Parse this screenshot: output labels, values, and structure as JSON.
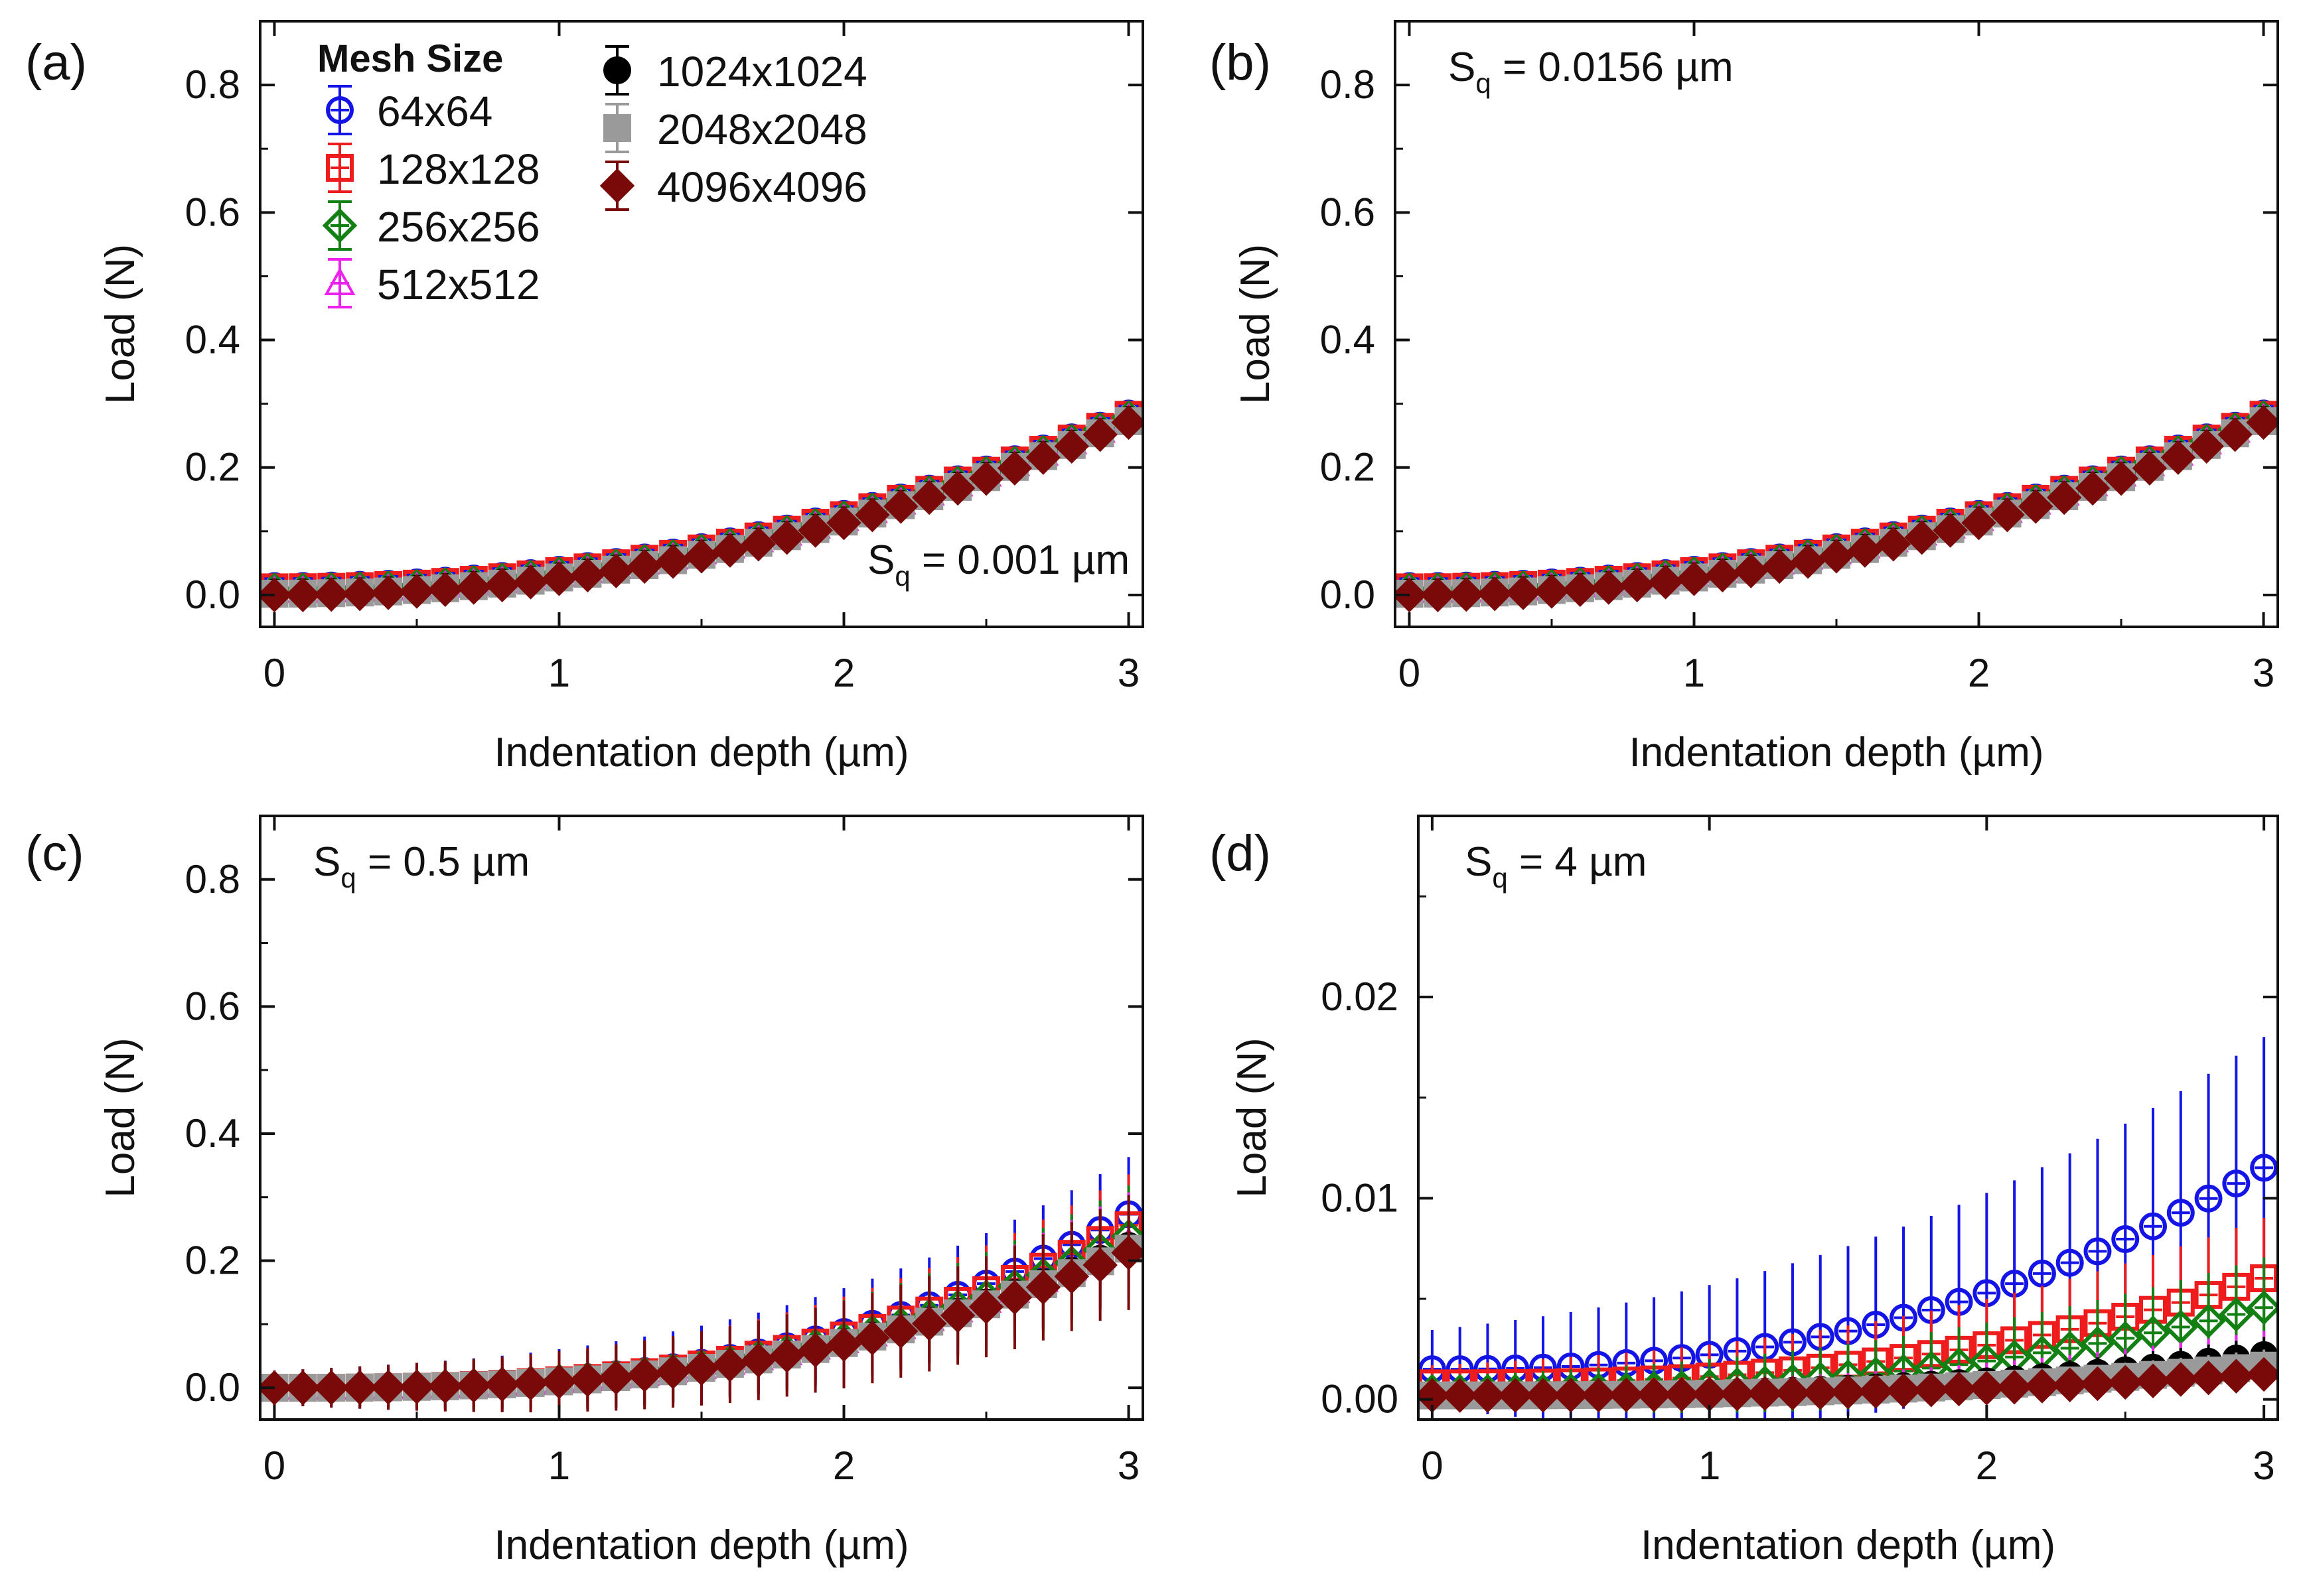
{
  "chart_data": [
    {
      "panel_label": "(a)",
      "type": "scatter",
      "annotation": {
        "prefix": "S",
        "sub": "q",
        "text": " = 0.001 µm"
      },
      "annotation_pos": "bottom-right",
      "xlabel": "Indentation depth (µm)",
      "ylabel": "Load (N)",
      "xlim": [
        -0.05,
        3.05
      ],
      "ylim": [
        -0.05,
        0.9
      ],
      "xticks": [
        0,
        1,
        2,
        3
      ],
      "xtick_labels": [
        "0",
        "1",
        "2",
        "3"
      ],
      "yticks": [
        0.0,
        0.2,
        0.4,
        0.6,
        0.8
      ],
      "ytick_labels": [
        "0.0",
        "0.2",
        "0.4",
        "0.6",
        "0.8"
      ],
      "x": [
        0,
        0.1,
        0.2,
        0.3,
        0.4,
        0.5,
        0.6,
        0.7,
        0.8,
        0.9,
        1.0,
        1.1,
        1.2,
        1.3,
        1.4,
        1.5,
        1.6,
        1.7,
        1.8,
        1.9,
        2.0,
        2.1,
        2.2,
        2.3,
        2.4,
        2.5,
        2.6,
        2.7,
        2.8,
        2.9,
        3.0
      ],
      "series": [
        {
          "name": "64x64",
          "a": 0.0255,
          "c": 0.014,
          "p": 2.15,
          "err": 0.01
        },
        {
          "name": "128x128",
          "a": 0.0255,
          "c": 0.012,
          "p": 2.15,
          "err": 0.01
        },
        {
          "name": "256x256",
          "a": 0.0255,
          "c": 0.008,
          "p": 2.15,
          "err": 0.01
        },
        {
          "name": "512x512",
          "a": 0.0255,
          "c": 0.006,
          "p": 2.15,
          "err": 0.01
        },
        {
          "name": "1024x1024",
          "a": 0.0255,
          "c": 0.004,
          "p": 2.15,
          "err": 0.01
        },
        {
          "name": "2048x2048",
          "a": 0.0255,
          "c": 0.002,
          "p": 2.15,
          "err": 0.01
        },
        {
          "name": "4096x4096",
          "a": 0.0255,
          "c": 0.0,
          "p": 2.15,
          "err": 0.01
        }
      ]
    },
    {
      "panel_label": "(b)",
      "type": "scatter",
      "annotation": {
        "prefix": "S",
        "sub": "q",
        "text": " = 0.0156 µm"
      },
      "annotation_pos": "top-left",
      "xlabel": "Indentation depth (µm)",
      "ylabel": "Load (N)",
      "xlim": [
        -0.05,
        3.05
      ],
      "ylim": [
        -0.05,
        0.9
      ],
      "xticks": [
        0,
        1,
        2,
        3
      ],
      "xtick_labels": [
        "0",
        "1",
        "2",
        "3"
      ],
      "yticks": [
        0.0,
        0.2,
        0.4,
        0.6,
        0.8
      ],
      "ytick_labels": [
        "0.0",
        "0.2",
        "0.4",
        "0.6",
        "0.8"
      ],
      "x": [
        0,
        0.1,
        0.2,
        0.3,
        0.4,
        0.5,
        0.6,
        0.7,
        0.8,
        0.9,
        1.0,
        1.1,
        1.2,
        1.3,
        1.4,
        1.5,
        1.6,
        1.7,
        1.8,
        1.9,
        2.0,
        2.1,
        2.2,
        2.3,
        2.4,
        2.5,
        2.6,
        2.7,
        2.8,
        2.9,
        3.0
      ],
      "series": [
        {
          "name": "64x64",
          "a": 0.0255,
          "c": 0.014,
          "p": 2.15,
          "err": 0.01
        },
        {
          "name": "128x128",
          "a": 0.0255,
          "c": 0.012,
          "p": 2.15,
          "err": 0.01
        },
        {
          "name": "256x256",
          "a": 0.0255,
          "c": 0.008,
          "p": 2.15,
          "err": 0.01
        },
        {
          "name": "512x512",
          "a": 0.0255,
          "c": 0.006,
          "p": 2.15,
          "err": 0.01
        },
        {
          "name": "1024x1024",
          "a": 0.0255,
          "c": 0.004,
          "p": 2.15,
          "err": 0.01
        },
        {
          "name": "2048x2048",
          "a": 0.0255,
          "c": 0.002,
          "p": 2.15,
          "err": 0.01
        },
        {
          "name": "4096x4096",
          "a": 0.0255,
          "c": 0.0,
          "p": 2.15,
          "err": 0.01
        }
      ]
    },
    {
      "panel_label": "(c)",
      "type": "scatter",
      "annotation": {
        "prefix": "S",
        "sub": "q",
        "text": " = 0.5 µm"
      },
      "annotation_pos": "top-left",
      "xlabel": "Indentation depth (µm)",
      "ylabel": "Load (N)",
      "xlim": [
        -0.05,
        3.05
      ],
      "ylim": [
        -0.05,
        0.9
      ],
      "xticks": [
        0,
        1,
        2,
        3
      ],
      "xtick_labels": [
        "0",
        "1",
        "2",
        "3"
      ],
      "yticks": [
        0.0,
        0.2,
        0.4,
        0.6,
        0.8
      ],
      "ytick_labels": [
        "0.0",
        "0.2",
        "0.4",
        "0.6",
        "0.8"
      ],
      "x": [
        0,
        0.1,
        0.2,
        0.3,
        0.4,
        0.5,
        0.6,
        0.7,
        0.8,
        0.9,
        1.0,
        1.1,
        1.2,
        1.3,
        1.4,
        1.5,
        1.6,
        1.7,
        1.8,
        1.9,
        2.0,
        2.1,
        2.2,
        2.3,
        2.4,
        2.5,
        2.6,
        2.7,
        2.8,
        2.9,
        3.0
      ],
      "series": [
        {
          "name": "64x64",
          "a": 0.0126,
          "c": 0.0,
          "p": 2.8,
          "err": 0.09
        },
        {
          "name": "128x128",
          "a": 0.0118,
          "c": 0.0,
          "p": 2.8,
          "err": 0.08
        },
        {
          "name": "256x256",
          "a": 0.011,
          "c": 0.0,
          "p": 2.8,
          "err": 0.08
        },
        {
          "name": "512x512",
          "a": 0.0105,
          "c": 0.0,
          "p": 2.8,
          "err": 0.08
        },
        {
          "name": "1024x1024",
          "a": 0.0103,
          "c": 0.0,
          "p": 2.8,
          "err": 0.08
        },
        {
          "name": "2048x2048",
          "a": 0.0101,
          "c": 0.0,
          "p": 2.8,
          "err": 0.08
        },
        {
          "name": "4096x4096",
          "a": 0.0098,
          "c": 0.0,
          "p": 2.8,
          "err": 0.09
        }
      ]
    },
    {
      "panel_label": "(d)",
      "type": "scatter",
      "annotation": {
        "prefix": "S",
        "sub": "q",
        "text": " = 4 µm"
      },
      "annotation_pos": "top-left",
      "xlabel": "Indentation depth (µm)",
      "ylabel": "Load (N)",
      "xlim": [
        -0.05,
        3.05
      ],
      "ylim": [
        -0.001,
        0.029
      ],
      "xticks": [
        0,
        1,
        2,
        3
      ],
      "xtick_labels": [
        "0",
        "1",
        "2",
        "3"
      ],
      "yticks": [
        0.0,
        0.01,
        0.02
      ],
      "ytick_labels": [
        "0.00",
        "0.01",
        "0.02"
      ],
      "x": [
        0,
        0.1,
        0.2,
        0.3,
        0.4,
        0.5,
        0.6,
        0.7,
        0.8,
        0.9,
        1.0,
        1.1,
        1.2,
        1.3,
        1.4,
        1.5,
        1.6,
        1.7,
        1.8,
        1.9,
        2.0,
        2.1,
        2.2,
        2.3,
        2.4,
        2.5,
        2.6,
        2.7,
        2.8,
        2.9,
        3.0
      ],
      "series": [
        {
          "name": "64x64",
          "a": 0.000717,
          "c": 0.0015,
          "p": 2.4,
          "err": 0.0065
        },
        {
          "name": "128x128",
          "a": 0.000335,
          "c": 0.0008,
          "p": 2.5,
          "err": 0.003
        },
        {
          "name": "256x256",
          "a": 0.000267,
          "c": 0.0004,
          "p": 2.5,
          "err": 0.0025
        },
        {
          "name": "512x512",
          "a": 0.000115,
          "c": 0.0002,
          "p": 2.6,
          "err": 0.0012
        },
        {
          "name": "1024x1024",
          "a": 0.000115,
          "c": 0.0002,
          "p": 2.6,
          "err": 0.0009
        },
        {
          "name": "2048x2048",
          "a": 8.5e-05,
          "c": 0.0002,
          "p": 2.6,
          "err": 0.0008
        },
        {
          "name": "4096x4096",
          "a": 6e-05,
          "c": 0.0002,
          "p": 2.6,
          "err": 0.0008
        }
      ]
    }
  ],
  "legend": {
    "title": "Mesh Size",
    "location": "top-left of panel (a)",
    "entries": [
      {
        "label": "64x64",
        "marker": "circle-plus",
        "color": "#1414e6"
      },
      {
        "label": "128x128",
        "marker": "square-plus",
        "color": "#ee1c1c"
      },
      {
        "label": "256x256",
        "marker": "diamond-plus",
        "color": "#128012"
      },
      {
        "label": "512x512",
        "marker": "triangle-plus",
        "color": "#ee22ee"
      },
      {
        "label": "1024x1024",
        "marker": "filled-circle",
        "color": "#000000"
      },
      {
        "label": "2048x2048",
        "marker": "filled-square",
        "color": "#9a9a9a"
      },
      {
        "label": "4096x4096",
        "marker": "filled-diamond",
        "color": "#7a0a0a"
      }
    ]
  }
}
